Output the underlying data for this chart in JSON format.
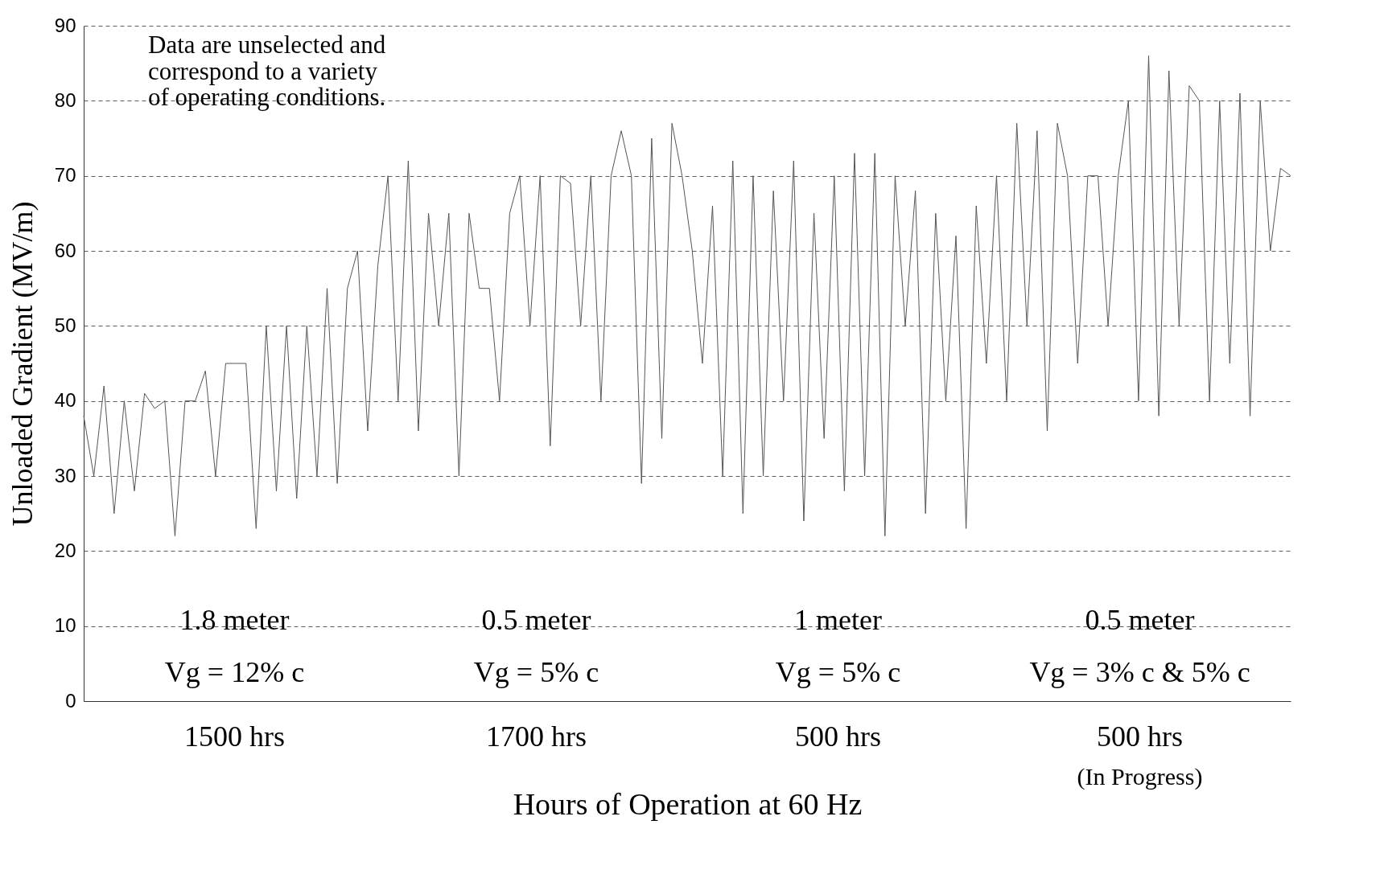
{
  "chart_data": {
    "type": "line",
    "xlabel": "Hours of Operation at 60 Hz",
    "ylabel": "Unloaded Gradient (MV/m)",
    "annotations": [
      "Data are unselected and\ncorrespond to a variety\nof operating conditions.",
      "1.8 meter",
      "Vg = 12% c",
      "1500 hrs",
      "0.5 meter",
      "Vg = 5% c",
      "1700 hrs",
      "1 meter",
      "Vg = 5% c",
      "500 hrs",
      "0.5 meter",
      "Vg = 3% c & 5% c",
      "500 hrs",
      "(In Progress)"
    ],
    "categories": [
      null,
      null,
      null,
      null,
      null,
      null,
      null,
      null,
      null,
      null,
      null,
      null,
      null,
      null,
      null,
      null,
      null,
      null,
      null,
      null,
      null,
      null,
      null,
      null,
      null,
      null,
      null,
      null,
      null,
      null,
      null,
      null,
      null,
      null,
      null,
      null,
      null,
      null,
      null,
      null,
      null,
      null,
      null,
      null,
      null,
      null,
      null,
      null,
      null,
      null,
      null,
      null,
      null,
      null,
      null,
      null,
      null,
      null,
      null,
      null,
      null,
      null,
      null,
      null,
      null,
      null,
      null,
      null,
      null,
      null,
      null,
      null,
      null,
      null,
      null,
      null,
      null,
      null,
      null,
      null,
      null,
      null,
      null,
      null,
      null,
      null,
      null,
      null,
      null,
      null,
      null,
      null,
      null,
      null,
      null,
      null,
      null,
      null,
      null,
      null,
      null,
      null,
      null,
      null,
      null,
      null,
      null,
      null,
      null,
      null,
      null,
      null,
      null,
      null,
      null,
      null,
      null,
      null,
      null,
      null
    ],
    "series": [
      {
        "color": "#555555",
        "values": [
          38,
          30,
          42,
          25,
          40,
          28,
          41,
          39,
          40,
          22,
          40,
          40,
          44,
          30,
          45,
          45,
          45,
          23,
          50,
          28,
          50,
          27,
          50,
          30,
          55,
          29,
          55,
          60,
          36,
          58,
          70,
          40,
          72,
          36,
          65,
          50,
          65,
          30,
          65,
          55,
          55,
          40,
          65,
          70,
          50,
          70,
          34,
          70,
          69,
          50,
          70,
          40,
          70,
          76,
          70,
          29,
          75,
          35,
          77,
          70,
          60,
          45,
          66,
          30,
          72,
          25,
          70,
          30,
          68,
          40,
          72,
          24,
          65,
          35,
          70,
          28,
          73,
          30,
          73,
          22,
          70,
          50,
          68,
          25,
          65,
          40,
          62,
          23,
          66,
          45,
          70,
          40,
          77,
          50,
          76,
          36,
          77,
          70,
          45,
          70,
          70,
          50,
          70,
          80,
          40,
          86,
          38,
          84,
          50,
          82,
          80,
          40,
          80,
          45,
          81,
          38,
          80,
          60,
          71,
          70
        ]
      }
    ],
    "ylim": [
      0,
      90
    ],
    "yticks": [
      0,
      10,
      20,
      30,
      40,
      50,
      60,
      70,
      80,
      90
    ],
    "grid": "y",
    "tick_labels": "y",
    "line_style": "solid",
    "marker": "none"
  }
}
